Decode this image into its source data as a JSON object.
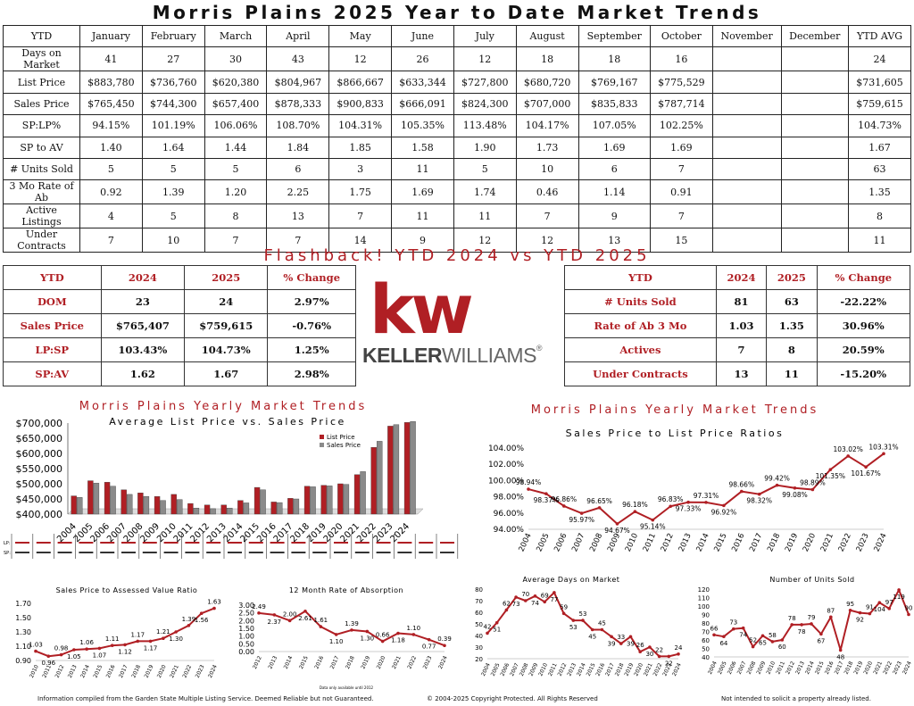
{
  "title": "Morris Plains 2025 Year to Date Market Trends",
  "table": {
    "header": [
      "YTD",
      "January",
      "February",
      "March",
      "April",
      "May",
      "June",
      "July",
      "August",
      "September",
      "October",
      "November",
      "December",
      "YTD AVG"
    ],
    "rows": [
      [
        "Days on Market",
        "41",
        "27",
        "30",
        "43",
        "12",
        "26",
        "12",
        "18",
        "18",
        "16",
        "",
        "",
        "24"
      ],
      [
        "List Price",
        "$883,780",
        "$736,760",
        "$620,380",
        "$804,967",
        "$866,667",
        "$633,344",
        "$727,800",
        "$680,720",
        "$769,167",
        "$775,529",
        "",
        "",
        "$731,605"
      ],
      [
        "Sales Price",
        "$765,450",
        "$744,300",
        "$657,400",
        "$878,333",
        "$900,833",
        "$666,091",
        "$824,300",
        "$707,000",
        "$835,833",
        "$787,714",
        "",
        "",
        "$759,615"
      ],
      [
        "SP:LP%",
        "94.15%",
        "101.19%",
        "106.06%",
        "108.70%",
        "104.31%",
        "105.35%",
        "113.48%",
        "104.17%",
        "107.05%",
        "102.25%",
        "",
        "",
        "104.73%"
      ],
      [
        "SP to AV",
        "1.40",
        "1.64",
        "1.44",
        "1.84",
        "1.85",
        "1.58",
        "1.90",
        "1.73",
        "1.69",
        "1.69",
        "",
        "",
        "1.67"
      ],
      [
        "# Units Sold",
        "5",
        "5",
        "5",
        "6",
        "3",
        "11",
        "5",
        "10",
        "6",
        "7",
        "",
        "",
        "63"
      ],
      [
        "3 Mo Rate of Ab",
        "0.92",
        "1.39",
        "1.20",
        "2.25",
        "1.75",
        "1.69",
        "1.74",
        "0.46",
        "1.14",
        "0.91",
        "",
        "",
        "1.35"
      ],
      [
        "Active Listings",
        "4",
        "5",
        "8",
        "13",
        "7",
        "11",
        "11",
        "7",
        "9",
        "7",
        "",
        "",
        "8"
      ],
      [
        "Under Contracts",
        "7",
        "10",
        "7",
        "7",
        "14",
        "9",
        "12",
        "12",
        "13",
        "15",
        "",
        "",
        "11"
      ]
    ]
  },
  "flashback": "Flashback!  YTD 2024 vs YTD 2025",
  "cmp_left": [
    [
      "YTD",
      "2024",
      "2025",
      "% Change"
    ],
    [
      "DOM",
      "23",
      "24",
      "2.97%"
    ],
    [
      "Sales Price",
      "$765,407",
      "$759,615",
      "-0.76%"
    ],
    [
      "LP:SP",
      "103.43%",
      "104.73%",
      "1.25%"
    ],
    [
      "SP:AV",
      "1.62",
      "1.67",
      "2.98%"
    ]
  ],
  "cmp_right": [
    [
      "YTD",
      "2024",
      "2025",
      "% Change"
    ],
    [
      "# Units Sold",
      "81",
      "63",
      "-22.22%"
    ],
    [
      "Rate of Ab 3 Mo",
      "1.03",
      "1.35",
      "30.96%"
    ],
    [
      "Actives",
      "7",
      "8",
      "20.59%"
    ],
    [
      "Under Contracts",
      "13",
      "11",
      "-15.20%"
    ]
  ],
  "logo": {
    "letters": "kw",
    "name_bold": "KELLER",
    "name_rest": "WILLIAMS",
    "mark": "®"
  },
  "colors": {
    "red": "#b01f24",
    "grey": "#8a8a8a"
  },
  "chart_data": [
    {
      "type": "bar",
      "heading": "Morris Plains Yearly Market Trends",
      "title": "Average List Price vs. Sales Price",
      "categories": [
        "2004",
        "2005",
        "2006",
        "2007",
        "2008",
        "2009",
        "2010",
        "2011",
        "2012",
        "2013",
        "2014",
        "2015",
        "2016",
        "2017",
        "2018",
        "2019",
        "2020",
        "2021",
        "2022",
        "2023",
        "2024"
      ],
      "series": [
        {
          "name": "List Price",
          "color": "#b01f24",
          "values": [
            460000,
            510000,
            505000,
            480000,
            470000,
            458000,
            465000,
            435000,
            430000,
            430000,
            445000,
            488000,
            440000,
            452000,
            492000,
            495000,
            500000,
            530000,
            620000,
            690000,
            702000
          ]
        },
        {
          "name": "Sales Price",
          "color": "#8a8a8a",
          "values": [
            455000,
            502000,
            492000,
            465000,
            458000,
            445000,
            448000,
            420000,
            418000,
            420000,
            437000,
            480000,
            438000,
            450000,
            490000,
            493000,
            498000,
            540000,
            640000,
            695000,
            705000
          ]
        }
      ],
      "ylim": [
        400000,
        700000
      ],
      "yticks": [
        "$400,000",
        "$450,000",
        "$500,000",
        "$550,000",
        "$600,000",
        "$650,000",
        "$700,000"
      ],
      "legend": [
        "List Price",
        "Sales Price"
      ],
      "strip_labels": [
        "LP:",
        "SP:"
      ],
      "strip_note": "values too small to read"
    },
    {
      "type": "line",
      "heading": "Morris Plains Yearly Market Trends",
      "title": "Sales Price to List Price Ratios",
      "x": [
        "2004",
        "2005",
        "2006",
        "2007",
        "2008",
        "2009",
        "2010",
        "2011",
        "2012",
        "2013",
        "2014",
        "2015",
        "2016",
        "2017",
        "2018",
        "2019",
        "2020",
        "2021",
        "2022",
        "2023",
        "2024"
      ],
      "values": [
        98.94,
        98.37,
        96.86,
        95.97,
        96.65,
        94.67,
        96.18,
        95.14,
        96.83,
        97.33,
        97.31,
        96.92,
        98.66,
        98.32,
        99.42,
        99.08,
        98.89,
        101.35,
        103.02,
        101.67,
        103.31
      ],
      "labels": [
        "98.94%",
        "98.37%",
        "96.86%",
        "95.97%",
        "96.65%",
        "94.67%",
        "96.18%",
        "95.14%",
        "96.83%",
        "97.33%",
        "97.31%",
        "96.92%",
        "98.66%",
        "98.32%",
        "99.42%",
        "99.08%",
        "98.89%",
        "101.35%",
        "103.02%",
        "101.67%",
        "103.31%"
      ],
      "ylim": [
        94,
        104
      ],
      "yticks": [
        "94.00%",
        "96.00%",
        "98.00%",
        "100.00%",
        "102.00%",
        "104.00%"
      ]
    },
    {
      "type": "line",
      "title": "Sales Price to Assessed Value Ratio",
      "x": [
        "2010",
        "2011",
        "2012",
        "2013",
        "2014",
        "2015",
        "2016",
        "2017",
        "2018",
        "2019",
        "2020",
        "2021",
        "2022",
        "2023",
        "2024"
      ],
      "values": [
        1.03,
        0.96,
        0.98,
        1.05,
        1.06,
        1.07,
        1.11,
        1.12,
        1.17,
        1.17,
        1.21,
        1.3,
        1.39,
        1.56,
        1.63
      ],
      "labels": [
        "1.03",
        "0.96",
        "0.98",
        "1.05",
        "1.06",
        "1.07",
        "1.11",
        "1.12",
        "1.17",
        "1.17",
        "1.21",
        "1.30",
        "1.39",
        "1.56",
        "1.63"
      ],
      "ylim": [
        0.9,
        1.7
      ],
      "yticks": [
        "0.90",
        "1.10",
        "1.30",
        "1.50",
        "1.70"
      ]
    },
    {
      "type": "line",
      "title": "12 Month Rate of Absorption",
      "x": [
        "2012",
        "2013",
        "2014",
        "2015",
        "2016",
        "2017",
        "2018",
        "2019",
        "2020",
        "2021",
        "2022",
        "2023",
        "2024"
      ],
      "values": [
        2.49,
        2.37,
        2.0,
        2.61,
        1.61,
        1.1,
        1.39,
        1.3,
        0.66,
        1.18,
        1.1,
        0.77,
        0.39
      ],
      "labels": [
        "2.49",
        "2.37",
        "2.00",
        "2.61",
        "1.61",
        "1.10",
        "1.39",
        "1.30",
        "0.66",
        "1.18",
        "1.10",
        "0.77",
        "0.39"
      ],
      "ylim": [
        0,
        3
      ],
      "yticks": [
        "0.00",
        "0.50",
        "1.00",
        "1.50",
        "2.00",
        "2.50",
        "3.00"
      ],
      "note": "Data only available until 2012"
    },
    {
      "type": "line",
      "title": "Average Days on Market",
      "x": [
        "2004",
        "2005",
        "2006",
        "2007",
        "2008",
        "2009",
        "2010",
        "2011",
        "2012",
        "2013",
        "2014",
        "2015",
        "2016",
        "2017",
        "2018",
        "2019",
        "2020",
        "2021",
        "2022",
        "2023",
        "2024"
      ],
      "values": [
        42,
        51,
        62,
        73,
        70,
        74,
        69,
        77,
        59,
        53,
        53,
        45,
        45,
        39,
        33,
        39,
        26,
        30,
        22,
        22,
        24
      ],
      "labels": [
        "42",
        "51",
        "62",
        "73",
        "70",
        "74",
        "69",
        "77",
        "59",
        "53",
        "53",
        "45",
        "45",
        "39",
        "33",
        "39",
        "26",
        "30",
        "22",
        "22",
        "24"
      ],
      "ylim": [
        20,
        80
      ],
      "yticks": [
        "20",
        "30",
        "40",
        "50",
        "60",
        "70",
        "80"
      ]
    },
    {
      "type": "line",
      "title": "Number of Units Sold",
      "x": [
        "2004",
        "2005",
        "2006",
        "2007",
        "2008",
        "2009",
        "2010",
        "2011",
        "2012",
        "2013",
        "2014",
        "2015",
        "2016",
        "2017",
        "2018",
        "2019",
        "2020",
        "2021",
        "2022",
        "2023",
        "2024"
      ],
      "values": [
        66,
        64,
        73,
        74,
        52,
        65,
        58,
        60,
        78,
        78,
        79,
        67,
        87,
        48,
        95,
        92,
        91,
        104,
        97,
        119,
        90
      ],
      "labels": [
        "66",
        "64",
        "73",
        "74",
        "52",
        "65",
        "58",
        "60",
        "78",
        "78",
        "79",
        "67",
        "87",
        "48",
        "95",
        "92",
        "91",
        "104",
        "97",
        "119",
        "90"
      ],
      "ylim": [
        40,
        120
      ],
      "yticks": [
        "40",
        "50",
        "60",
        "70",
        "80",
        "90",
        "100",
        "110",
        "120"
      ]
    }
  ],
  "footer": {
    "left": "Information compiled from the Garden State Multiple Listing Service.  Deemed Reliable but not Guaranteed.",
    "center": "© 2004-2025 Copyright Protected.  All Rights Reserved",
    "right": "Not intended to solicit a property already listed."
  }
}
